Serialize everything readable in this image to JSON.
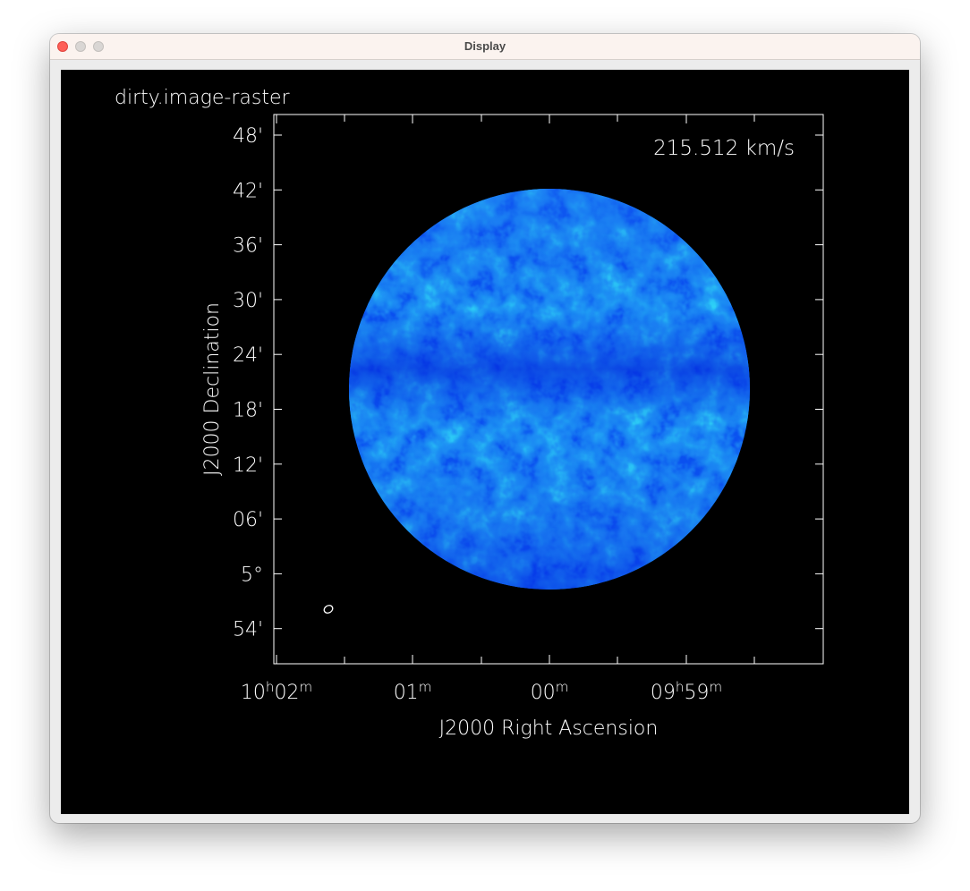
{
  "window": {
    "title": "Display"
  },
  "image": {
    "name": "dirty.image-raster",
    "velocity_label": "215.512 km/s",
    "colormap": [
      "#0018e0",
      "#0a52f0",
      "#1e8cf4",
      "#2ed2f6"
    ]
  },
  "axes": {
    "xlabel": "J2000 Right Ascension",
    "ylabel": "J2000 Declination",
    "x_ticks": [
      {
        "main": "10",
        "sup1": "h",
        "rest": "02",
        "sup2": "m"
      },
      {
        "main": "01",
        "sup1": "m",
        "rest": "",
        "sup2": ""
      },
      {
        "main": "00",
        "sup1": "m",
        "rest": "",
        "sup2": ""
      },
      {
        "main": "09",
        "sup1": "h",
        "rest": "59",
        "sup2": "m"
      }
    ],
    "y_ticks": [
      "48'",
      "42'",
      "36'",
      "30'",
      "24'",
      "18'",
      "12'",
      "06'",
      "5°",
      "54'"
    ]
  }
}
